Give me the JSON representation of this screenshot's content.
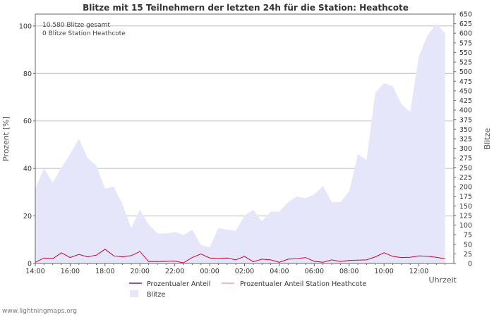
{
  "chart_data": {
    "type": "line+area",
    "title": "Blitze mit 15 Teilnehmern der letzten 24h für die Station: Heathcote",
    "ylabel_left": "Prozent   [%]",
    "ylabel_right": "Blitze",
    "xlabel": "Uhrzeit",
    "ylim_left": [
      0,
      105
    ],
    "ylim_right": [
      0,
      650
    ],
    "yticks_left": [
      0,
      20,
      40,
      60,
      80,
      100
    ],
    "yticks_right": [
      0,
      25,
      50,
      75,
      100,
      125,
      150,
      175,
      200,
      225,
      250,
      275,
      300,
      325,
      350,
      375,
      400,
      425,
      450,
      475,
      500,
      525,
      550,
      575,
      600,
      625,
      650
    ],
    "x_start": "14:00",
    "x_end": "13:45",
    "x_step_minutes": 30,
    "xticks": [
      {
        "label": "14:00",
        "index": 0
      },
      {
        "label": "16:00",
        "index": 4
      },
      {
        "label": "18:00",
        "index": 8
      },
      {
        "label": "20:00",
        "index": 12
      },
      {
        "label": "22:00",
        "index": 16
      },
      {
        "label": "00:00",
        "index": 20
      },
      {
        "label": "02:00",
        "index": 24
      },
      {
        "label": "04:00",
        "index": 28
      },
      {
        "label": "06:00",
        "index": 32
      },
      {
        "label": "08:00",
        "index": 36
      },
      {
        "label": "10:00",
        "index": 40
      },
      {
        "label": "12:00",
        "index": 44
      }
    ],
    "annotations": [
      "10.580 Blitze gesamt",
      "0 Blitze Station Heathcote"
    ],
    "series": [
      {
        "name": "Blitze",
        "axis": "right",
        "kind": "area",
        "color": "#e6e6fa",
        "values": [
          195,
          248,
          210,
          250,
          285,
          325,
          275,
          255,
          195,
          200,
          155,
          92,
          140,
          102,
          78,
          78,
          82,
          74,
          88,
          48,
          42,
          92,
          88,
          85,
          125,
          140,
          110,
          135,
          135,
          160,
          175,
          170,
          180,
          202,
          160,
          160,
          188,
          285,
          270,
          445,
          470,
          462,
          415,
          395,
          540,
          595,
          625,
          600
        ]
      },
      {
        "name": "Prozentualer Anteil",
        "axis": "left",
        "kind": "line",
        "color": "#cc0033",
        "values": [
          0.5,
          2.3,
          2.0,
          4.5,
          2.5,
          3.8,
          2.8,
          3.5,
          6.0,
          3.2,
          2.8,
          3.3,
          5.0,
          0.8,
          0.8,
          0.9,
          1.0,
          0.3,
          2.5,
          4.0,
          2.3,
          2.1,
          2.3,
          1.5,
          3.0,
          0.7,
          1.8,
          1.5,
          0.5,
          1.8,
          2.0,
          2.5,
          0.9,
          0.5,
          1.5,
          0.8,
          1.3,
          1.4,
          1.5,
          2.8,
          4.5,
          3.0,
          2.5,
          2.6,
          3.2,
          3.0,
          2.6,
          2.0
        ]
      },
      {
        "name": "Prozentualer Anteil Station Heathcote",
        "axis": "left",
        "kind": "line",
        "color": "#f4a0a0",
        "values": []
      }
    ],
    "legend": [
      {
        "label": "Prozentualer Anteil",
        "color": "#cc0033",
        "kind": "line"
      },
      {
        "label": "Prozentualer Anteil Station Heathcote",
        "color": "#f4a0a0",
        "kind": "line"
      },
      {
        "label": "Blitze",
        "color": "#e6e6fa",
        "kind": "area"
      }
    ]
  },
  "footer": "www.lightningmaps.org"
}
